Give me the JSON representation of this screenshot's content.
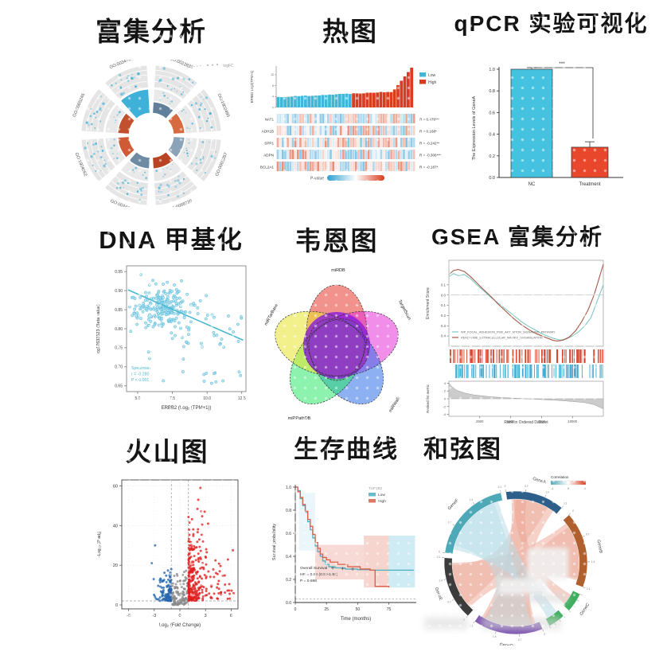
{
  "panels": {
    "enrichment": {
      "title": "富集分析"
    },
    "heatmap": {
      "title": "热图"
    },
    "qpcr": {
      "title": "qPCR 实验可视化"
    },
    "methylation": {
      "title": "DNA 甲基化"
    },
    "venn": {
      "title": "韦恩图"
    },
    "gsea": {
      "title": "GSEA 富集分析"
    },
    "volcano": {
      "title": "火山图"
    },
    "survival": {
      "title": "生存曲线"
    },
    "chord": {
      "title": "和弦图"
    }
  },
  "chart_data": [
    {
      "id": "enrichment",
      "type": "circular-enrichment",
      "title": "富集分析",
      "sector_labels": [
        "GO:0005246",
        "GO:0034705",
        "GO:0022836",
        "GO:1902495",
        "GO:0005267",
        "GO:0098739",
        "GO:0034765",
        "GO:1904062"
      ],
      "inner_colors": [
        "#c2502e",
        "#3fb0d8",
        "#5f7f9a",
        "#d86a3f",
        "#8ba3b8",
        "#b84424",
        "#6f8ba3",
        "#cf5a35"
      ],
      "highlight_sector": 1,
      "ring_color": "#e5e5e5",
      "dot_color": "#49b4d8",
      "legend": "logFC"
    },
    {
      "id": "heatmap",
      "type": "heatmap",
      "title": "热图",
      "top_bar": {
        "ylabel": "ERBB2 Log2(TPM+1)",
        "yticks": [
          0,
          4,
          8,
          12
        ],
        "groups": [
          {
            "name": "Low",
            "color": "#3fb8d8",
            "count": 22
          },
          {
            "name": "High",
            "color": "#d93d20",
            "count": 18
          }
        ]
      },
      "rows": [
        {
          "gene": "NAT1",
          "stat": "R = 0.476***"
        },
        {
          "gene": "ADH1B",
          "stat": "R = 0.168*"
        },
        {
          "gene": "SPP1",
          "stat": "R = -0.242**"
        },
        {
          "gene": "ADPN",
          "stat": "R = -0.306***"
        },
        {
          "gene": "BCL2A1",
          "stat": "R = -0.187*"
        }
      ],
      "n_cols": 55,
      "cell_colors": {
        "low": "#4aa8d8",
        "high": "#e05a38"
      },
      "legend": {
        "label": "P-value",
        "gradient": [
          "#2e9fd0",
          "#ffffff",
          "#d93d20"
        ]
      }
    },
    {
      "id": "qpcr",
      "type": "bar",
      "title": "qPCR 实验可视化",
      "categories": [
        "NC",
        "Treatment"
      ],
      "values": [
        1.0,
        0.28
      ],
      "errors": [
        0.015,
        0.05
      ],
      "colors": [
        "#45c2e0",
        "#e8472b"
      ],
      "ylabel": "The Expression Levels of GeneA",
      "yticks": [
        0.0,
        0.2,
        0.4,
        0.6,
        0.8,
        1.0
      ],
      "ylim": [
        0,
        1.05
      ],
      "significance": "***"
    },
    {
      "id": "methylation",
      "type": "scatter",
      "title": "DNA 甲基化",
      "xlabel": "ERBB2 (Log₂ (TPM+1))",
      "ylabel": "cg17633523 (Beta value)",
      "xticks": [
        5.0,
        7.5,
        10.0,
        12.5
      ],
      "yticks": [
        0.95,
        0.9,
        0.85,
        0.8,
        0.75,
        0.7,
        0.65
      ],
      "xlim": [
        4.2,
        12.8
      ],
      "ylim": [
        0.635,
        0.965
      ],
      "n_points": 280,
      "cluster": {
        "x_mean": 6.6,
        "x_sd": 1.2,
        "y_mean": 0.856,
        "y_sd": 0.027
      },
      "trend": {
        "x1": 4.3,
        "y1": 0.902,
        "x2": 12.6,
        "y2": 0.77
      },
      "point_fill": "#9fdcef",
      "point_stroke": "#57b8d6",
      "trend_color": "#49b8d0",
      "annotation": {
        "lines": [
          "Spearman",
          "r = -0.280",
          "P < 0.001"
        ],
        "color": "#49b8c8"
      }
    },
    {
      "id": "venn",
      "type": "venn",
      "title": "韦恩图",
      "sets": [
        {
          "label": "miRDB",
          "color": "#e8392e"
        },
        {
          "label": "TargetScan",
          "color": "#e431d8"
        },
        {
          "label": "miRWalk",
          "color": "#2f6fe8"
        },
        {
          "label": "miRPathDB",
          "color": "#2ee86a"
        },
        {
          "label": "miRTarBase",
          "color": "#e8e32c"
        }
      ],
      "center_color": "#8a1fd8"
    },
    {
      "id": "gsea",
      "type": "gsea",
      "title": "GSEA 富集分析",
      "ylabel": "Enrichment Score",
      "es_ticks": [
        0.1,
        0.0,
        -0.1,
        -0.2,
        -0.3,
        -0.4
      ],
      "series": [
        {
          "name": "WP_FOCAL_ADHESION_PI3K_AKT_MTOR_SIGNALING_PATHWAY",
          "color": "#7fc8c4",
          "points": [
            [
              0,
              0.18
            ],
            [
              0.03,
              0.21
            ],
            [
              0.06,
              0.19
            ],
            [
              0.1,
              0.2
            ],
            [
              0.14,
              0.16
            ],
            [
              0.18,
              0.1
            ],
            [
              0.22,
              0.05
            ],
            [
              0.27,
              -0.02
            ],
            [
              0.32,
              -0.08
            ],
            [
              0.37,
              -0.14
            ],
            [
              0.42,
              -0.2
            ],
            [
              0.47,
              -0.26
            ],
            [
              0.52,
              -0.31
            ],
            [
              0.57,
              -0.35
            ],
            [
              0.62,
              -0.39
            ],
            [
              0.67,
              -0.42
            ],
            [
              0.72,
              -0.44
            ],
            [
              0.76,
              -0.43
            ],
            [
              0.8,
              -0.4
            ],
            [
              0.84,
              -0.36
            ],
            [
              0.88,
              -0.3
            ],
            [
              0.92,
              -0.22
            ],
            [
              0.95,
              -0.1
            ],
            [
              0.98,
              0.02
            ],
            [
              1,
              0.1
            ]
          ]
        },
        {
          "name": "REACTOME_EXTRACELLULAR_MATRIX_ORGANIZATION",
          "color": "#a85a4a",
          "points": [
            [
              0,
              0.2
            ],
            [
              0.03,
              0.24
            ],
            [
              0.06,
              0.25
            ],
            [
              0.1,
              0.23
            ],
            [
              0.14,
              0.18
            ],
            [
              0.18,
              0.12
            ],
            [
              0.22,
              0.06
            ],
            [
              0.27,
              -0.01
            ],
            [
              0.32,
              -0.09
            ],
            [
              0.37,
              -0.16
            ],
            [
              0.42,
              -0.23
            ],
            [
              0.47,
              -0.29
            ],
            [
              0.52,
              -0.34
            ],
            [
              0.57,
              -0.38
            ],
            [
              0.62,
              -0.41
            ],
            [
              0.67,
              -0.44
            ],
            [
              0.7,
              -0.45
            ],
            [
              0.74,
              -0.44
            ],
            [
              0.78,
              -0.41
            ],
            [
              0.82,
              -0.35
            ],
            [
              0.86,
              -0.26
            ],
            [
              0.9,
              -0.15
            ],
            [
              0.94,
              0
            ],
            [
              0.97,
              0.15
            ],
            [
              1,
              0.3
            ]
          ]
        }
      ],
      "hit_colors": [
        "#d94028",
        "#3fa8d0"
      ],
      "rank_panel": {
        "ylabel": "Ranked list metric",
        "yticks": [
          4,
          2,
          0,
          -2,
          -4
        ],
        "xticks": [
          2500,
          5000,
          7500,
          10000
        ],
        "x_max": 12500,
        "xlabel": "Rank in Ordered Dataset",
        "area": [
          [
            0,
            4
          ],
          [
            0.02,
            3.1
          ],
          [
            0.05,
            2.2
          ],
          [
            0.1,
            1.5
          ],
          [
            0.16,
            1.0
          ],
          [
            0.25,
            0.6
          ],
          [
            0.35,
            0.3
          ],
          [
            0.45,
            0.1
          ],
          [
            0.5,
            0
          ],
          [
            0.6,
            -0.2
          ],
          [
            0.7,
            -0.4
          ],
          [
            0.8,
            -0.7
          ],
          [
            0.88,
            -1.0
          ],
          [
            0.94,
            -1.5
          ],
          [
            1,
            -2.6
          ]
        ]
      }
    },
    {
      "id": "volcano",
      "type": "volcano",
      "title": "火山图",
      "xlabel": "Log₂ (Fold Change)",
      "ylabel": "-Log₁₀ (P adj)",
      "xticks": [
        -6,
        -3,
        0,
        3,
        6
      ],
      "yticks": [
        0,
        20,
        40,
        60
      ],
      "xlim": [
        -6.8,
        6.8
      ],
      "ylim": [
        -2,
        63
      ],
      "thresholds": {
        "fc": [
          -1,
          1
        ],
        "p": 2
      },
      "groups": [
        {
          "name": "Down",
          "color": "#2565ae",
          "n": 120
        },
        {
          "name": "NS",
          "color": "#8a8a8a",
          "n": 120
        },
        {
          "name": "Up",
          "color": "#e01f1f",
          "n": 250
        }
      ],
      "extra_down": [
        [
          -2.9,
          30
        ],
        [
          -3.3,
          21
        ]
      ],
      "top_up": [
        [
          2.4,
          59
        ],
        [
          2.15,
          53
        ],
        [
          2.9,
          47
        ],
        [
          3.3,
          41
        ]
      ]
    },
    {
      "id": "survival",
      "type": "km",
      "title": "生存曲线",
      "ylabel": "Survival probability",
      "xlabel": "Time (months)",
      "yticks": [
        0.0,
        0.2,
        0.4,
        0.6,
        0.8,
        1.0
      ],
      "xticks": [
        0,
        25,
        50,
        75
      ],
      "legend": {
        "title": "TUF1B2",
        "entries": [
          {
            "name": "Low",
            "color": "#4db0c0"
          },
          {
            "name": "High",
            "color": "#d95f4a"
          }
        ]
      },
      "annotation": [
        "Overall Survival",
        "HR = 0.99 (0.59-1.93)",
        "P = 0.698"
      ],
      "curves": [
        {
          "name": "Low",
          "color": "#4db0c0",
          "points": [
            [
              0,
              1.0
            ],
            [
              2,
              0.97
            ],
            [
              4,
              0.9
            ],
            [
              6,
              0.84
            ],
            [
              8,
              0.78
            ],
            [
              10,
              0.7
            ],
            [
              12,
              0.63
            ],
            [
              14,
              0.56
            ],
            [
              16,
              0.49
            ],
            [
              18,
              0.44
            ],
            [
              20,
              0.4
            ],
            [
              22,
              0.36
            ],
            [
              24,
              0.33
            ],
            [
              27,
              0.31
            ],
            [
              32,
              0.3
            ],
            [
              40,
              0.29
            ],
            [
              50,
              0.285
            ],
            [
              60,
              0.28
            ],
            [
              95,
              0.28
            ]
          ]
        },
        {
          "name": "High",
          "color": "#d95f4a",
          "points": [
            [
              0,
              1.0
            ],
            [
              2,
              0.96
            ],
            [
              4,
              0.91
            ],
            [
              6,
              0.85
            ],
            [
              8,
              0.79
            ],
            [
              10,
              0.72
            ],
            [
              12,
              0.66
            ],
            [
              14,
              0.59
            ],
            [
              16,
              0.52
            ],
            [
              18,
              0.47
            ],
            [
              20,
              0.42
            ],
            [
              22,
              0.39
            ],
            [
              25,
              0.37
            ],
            [
              28,
              0.35
            ],
            [
              34,
              0.33
            ],
            [
              42,
              0.31
            ],
            [
              52,
              0.29
            ],
            [
              60,
              0.28
            ],
            [
              64,
              0.14
            ],
            [
              75,
              0.13
            ]
          ]
        }
      ],
      "bands": [
        {
          "x0": 3,
          "x1": 16,
          "lo": 0.45,
          "hi": 0.95,
          "color": "#9fd8e8",
          "op": 0.22
        },
        {
          "x0": 16,
          "x1": 55,
          "lo": 0.2,
          "hi": 0.5,
          "color": "#e8907f",
          "op": 0.33
        },
        {
          "x0": 55,
          "x1": 75,
          "lo": 0.13,
          "hi": 0.58,
          "color": "#e8907f",
          "op": 0.38
        },
        {
          "x0": 75,
          "x1": 96,
          "lo": 0.13,
          "hi": 0.58,
          "color": "#9fd8e8",
          "op": 0.5
        }
      ]
    },
    {
      "id": "chord",
      "type": "chord",
      "title": "和弦图",
      "segments": [
        {
          "label": "GeneA",
          "color": "#2e5f8a",
          "a0": -8,
          "a1": 40
        },
        {
          "label": "GeneB",
          "color": "#b05f2e",
          "a0": 48,
          "a1": 110
        },
        {
          "label": "GeneC",
          "color": "#3fae5f",
          "a0": 116,
          "a1": 132
        },
        {
          "label": "",
          "color": "#3fae5f",
          "a0": 138,
          "a1": 152
        },
        {
          "label": "GeneD",
          "color": "#7e57b0",
          "a0": 158,
          "a1": 215
        },
        {
          "label": "GeneE",
          "color": "#3c3c3c",
          "a0": 222,
          "a1": 274
        },
        {
          "label": "GeneF",
          "color": "#4da8b8",
          "a0": 278,
          "a1": 348
        }
      ],
      "axis_ticks": [
        0,
        0.7,
        1.4,
        2.1
      ],
      "ribbons": [
        {
          "a": [
            -4,
            36
          ],
          "b": [
            162,
            212
          ],
          "c": "#eba392",
          "o": 0.5
        },
        {
          "a": [
            52,
            106
          ],
          "b": [
            226,
            270
          ],
          "c": "#eba392",
          "o": 0.5
        },
        {
          "a": [
            0,
            30
          ],
          "b": [
            230,
            268
          ],
          "c": "#eba392",
          "o": 0.4
        },
        {
          "a": [
            56,
            104
          ],
          "b": [
            164,
            210
          ],
          "c": "#eba392",
          "o": 0.45
        },
        {
          "a": [
            120,
            130
          ],
          "b": [
            -2,
            10
          ],
          "c": "#eba392",
          "o": 0.5
        },
        {
          "a": [
            282,
            344
          ],
          "b": [
            140,
            150
          ],
          "c": "#b8dde8",
          "o": 0.55
        },
        {
          "a": [
            286,
            340
          ],
          "b": [
            166,
            208
          ],
          "c": "#b8dde8",
          "o": 0.45
        }
      ],
      "legend": {
        "title": "Correlation",
        "min": "-1",
        "mid": "0",
        "max": "1",
        "gradient": [
          "#4da8b8",
          "#ffffff",
          "#d93a1e"
        ]
      }
    }
  ]
}
